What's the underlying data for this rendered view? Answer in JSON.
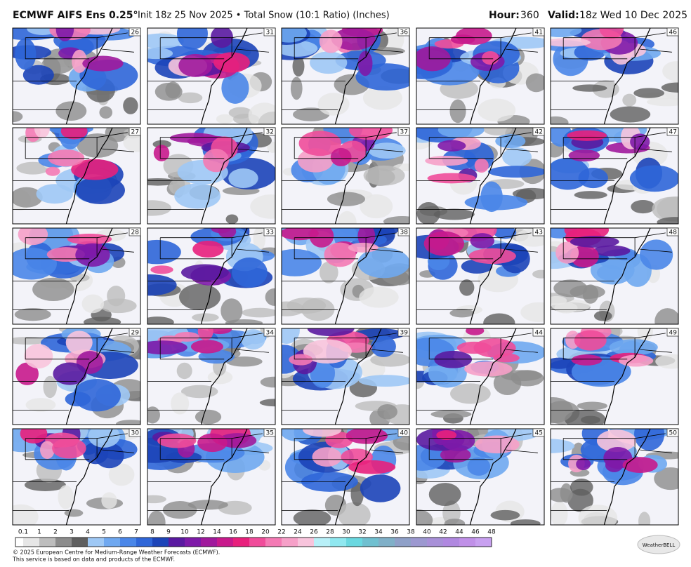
{
  "header": {
    "title": "ECMWF AIFS Ens 0.25°",
    "subtitle": "Init 18z 25 Nov 2025 • Total Snow (10:1 Ratio) (Inches)",
    "hour_label": "Hour:",
    "hour": 360,
    "valid_label": "Valid:",
    "valid": "18z Wed 10 Dec 2025"
  },
  "panels": [
    26,
    31,
    36,
    41,
    46,
    27,
    32,
    37,
    42,
    47,
    28,
    33,
    38,
    43,
    48,
    29,
    34,
    39,
    44,
    49,
    30,
    35,
    40,
    45,
    50
  ],
  "colorbar": {
    "labels": [
      0.1,
      1,
      2,
      3,
      4,
      5,
      6,
      7,
      8,
      9,
      10,
      12,
      14,
      16,
      18,
      20,
      22,
      24,
      26,
      28,
      30,
      32,
      34,
      36,
      38,
      40,
      42,
      44,
      46,
      48
    ],
    "colors": [
      "#ffffff",
      "#e6e6e6",
      "#bdbdbd",
      "#8c8c8c",
      "#5f5f5f",
      "#9ec8f5",
      "#6fa8f0",
      "#4a86e8",
      "#2f66d8",
      "#1c44b8",
      "#5a1aa0",
      "#7e1aa8",
      "#a01a9c",
      "#c81a8c",
      "#e8207c",
      "#f04c9a",
      "#f47ab4",
      "#f6a0c8",
      "#f8c4dc",
      "#b8f0f8",
      "#90e8f0",
      "#6ad8e0",
      "#70c0d0",
      "#80b0c8",
      "#8fa0c8",
      "#9c98d0",
      "#a890d8",
      "#b088e0",
      "#c090e8",
      "#c8a0f0"
    ]
  },
  "footer": {
    "copyright": "© 2025 European Centre for Medium-Range Weather Forecasts (ECMWF).",
    "notice": "This service is based on data and products of the ECMWF.",
    "logo": "WeatherBELL"
  }
}
